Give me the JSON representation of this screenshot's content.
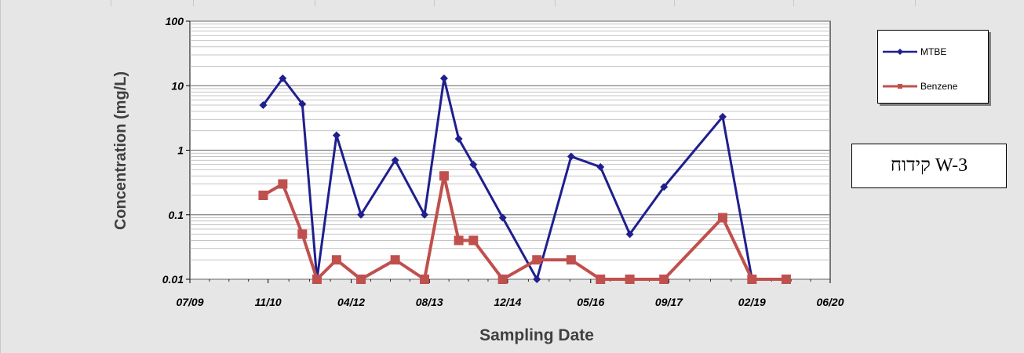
{
  "chart_data": {
    "type": "line",
    "title": "",
    "xlabel": "Sampling Date",
    "ylabel": "Concentration (mg/L)",
    "yscale": "log",
    "ylim": [
      0.01,
      100
    ],
    "y_ticks": [
      "0.01",
      "0.1",
      "1",
      "10",
      "100"
    ],
    "xlim": [
      "2009-07",
      "2020-06"
    ],
    "x_ticks": [
      "07/09",
      "11/10",
      "04/12",
      "08/13",
      "12/14",
      "05/16",
      "09/17",
      "02/19",
      "06/20"
    ],
    "grid": true,
    "legend_position": "right",
    "series": [
      {
        "name": "MTBE",
        "color": "#1f1f8f",
        "marker": "diamond",
        "points": [
          {
            "x": "2010-10",
            "y": 5
          },
          {
            "x": "2011-02",
            "y": 13
          },
          {
            "x": "2011-06",
            "y": 5.2
          },
          {
            "x": "2011-09",
            "y": 0.01
          },
          {
            "x": "2012-01",
            "y": 1.7
          },
          {
            "x": "2012-06",
            "y": 0.1
          },
          {
            "x": "2013-01",
            "y": 0.7
          },
          {
            "x": "2013-07",
            "y": 0.1
          },
          {
            "x": "2013-11",
            "y": 13
          },
          {
            "x": "2014-02",
            "y": 1.5
          },
          {
            "x": "2014-05",
            "y": 0.6
          },
          {
            "x": "2014-11",
            "y": 0.09
          },
          {
            "x": "2015-06",
            "y": 0.01
          },
          {
            "x": "2016-01",
            "y": 0.8
          },
          {
            "x": "2016-07",
            "y": 0.55
          },
          {
            "x": "2017-01",
            "y": 0.05
          },
          {
            "x": "2017-08",
            "y": 0.27
          },
          {
            "x": "2018-08",
            "y": 3.3
          },
          {
            "x": "2019-02",
            "y": 0.01
          },
          {
            "x": "2019-09",
            "y": 0.01
          }
        ]
      },
      {
        "name": "Benzene",
        "color": "#c0504d",
        "marker": "square",
        "points": [
          {
            "x": "2010-10",
            "y": 0.2
          },
          {
            "x": "2011-02",
            "y": 0.3
          },
          {
            "x": "2011-06",
            "y": 0.05
          },
          {
            "x": "2011-09",
            "y": 0.01
          },
          {
            "x": "2012-01",
            "y": 0.02
          },
          {
            "x": "2012-06",
            "y": 0.01
          },
          {
            "x": "2013-01",
            "y": 0.02
          },
          {
            "x": "2013-07",
            "y": 0.01
          },
          {
            "x": "2013-11",
            "y": 0.4
          },
          {
            "x": "2014-02",
            "y": 0.04
          },
          {
            "x": "2014-05",
            "y": 0.04
          },
          {
            "x": "2014-11",
            "y": 0.01
          },
          {
            "x": "2015-06",
            "y": 0.02
          },
          {
            "x": "2016-01",
            "y": 0.02
          },
          {
            "x": "2016-07",
            "y": 0.01
          },
          {
            "x": "2017-01",
            "y": 0.01
          },
          {
            "x": "2017-08",
            "y": 0.01
          },
          {
            "x": "2018-08",
            "y": 0.09
          },
          {
            "x": "2019-02",
            "y": 0.01
          },
          {
            "x": "2019-09",
            "y": 0.01
          }
        ]
      }
    ]
  },
  "well_label": "קידוח W-3"
}
